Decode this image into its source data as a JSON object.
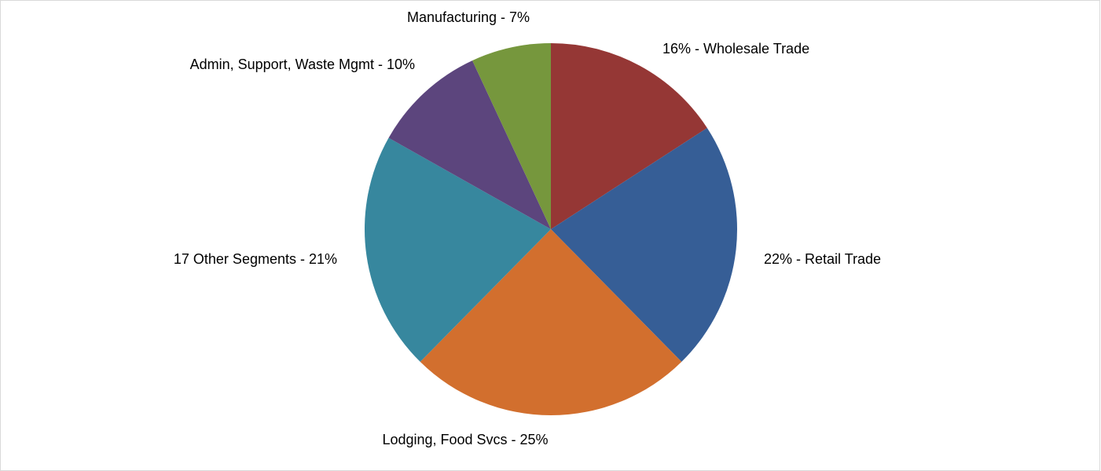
{
  "chart_data": {
    "type": "pie",
    "title": "",
    "slices": [
      {
        "label": "Wholesale Trade",
        "value": 16,
        "display": "16% - Wholesale Trade",
        "color": "#953735"
      },
      {
        "label": "Retail Trade",
        "value": 22,
        "display": "22% - Retail Trade",
        "color": "#365E96"
      },
      {
        "label": "Lodging, Food Svcs",
        "value": 25,
        "display": "Lodging, Food Svcs - 25%",
        "color": "#D26F2E"
      },
      {
        "label": "17 Other Segments",
        "value": 21,
        "display": "17 Other Segments - 21%",
        "color": "#37879E"
      },
      {
        "label": "Admin, Support, Waste Mgmt",
        "value": 10,
        "display": "Admin, Support, Waste Mgmt - 10%",
        "color": "#5C457D"
      },
      {
        "label": "Manufacturing",
        "value": 7,
        "display": "Manufacturing - 7%",
        "color": "#76973D"
      }
    ],
    "start_angle_deg": 0,
    "direction": "clockwise",
    "legend": "none"
  }
}
